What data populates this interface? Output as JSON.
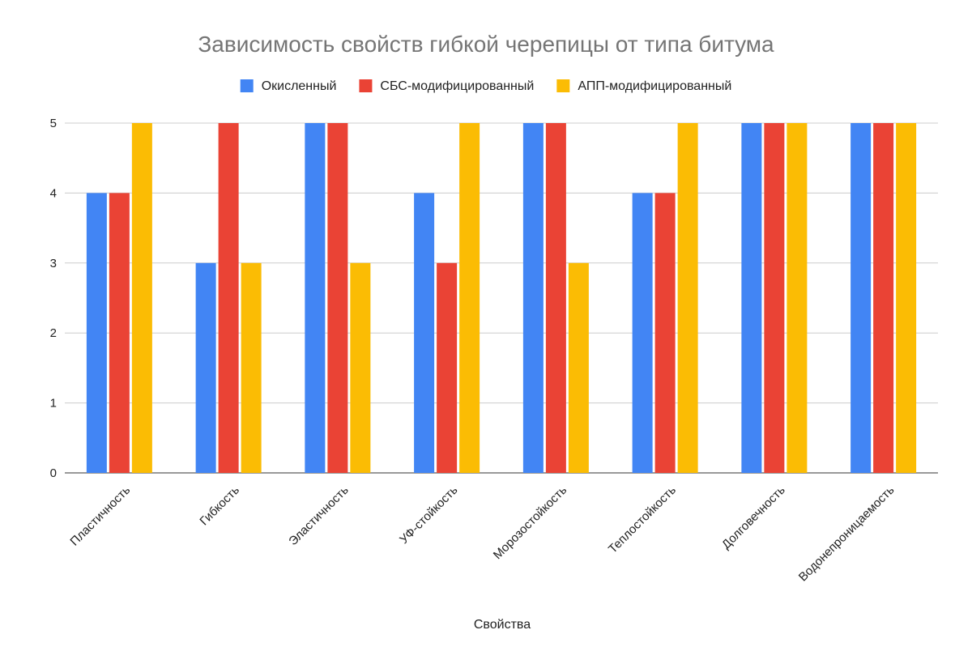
{
  "chart_data": {
    "type": "bar",
    "title": "Зависимость свойств гибкой черепицы от типа битума",
    "xlabel": "Свойства",
    "ylabel": "",
    "ylim": [
      0,
      5
    ],
    "yticks": [
      0,
      1,
      2,
      3,
      4,
      5
    ],
    "grid": true,
    "legend_position": "top",
    "categories": [
      "Пластичность",
      "Гибкость",
      "Эластичность",
      "УФ-стойкость",
      "Морозостойкость",
      "Теплостойкость",
      "Долговечность",
      "Водонепроницаемость"
    ],
    "series": [
      {
        "name": "Окисленный",
        "color": "#4285F4",
        "values": [
          4,
          3,
          5,
          4,
          5,
          4,
          5,
          5
        ]
      },
      {
        "name": "СБС-модифицированный",
        "color": "#EA4335",
        "values": [
          4,
          5,
          5,
          3,
          5,
          4,
          5,
          5
        ]
      },
      {
        "name": "АПП-модифицированный",
        "color": "#FBBC04",
        "values": [
          5,
          3,
          3,
          5,
          3,
          5,
          5,
          5
        ]
      }
    ]
  }
}
